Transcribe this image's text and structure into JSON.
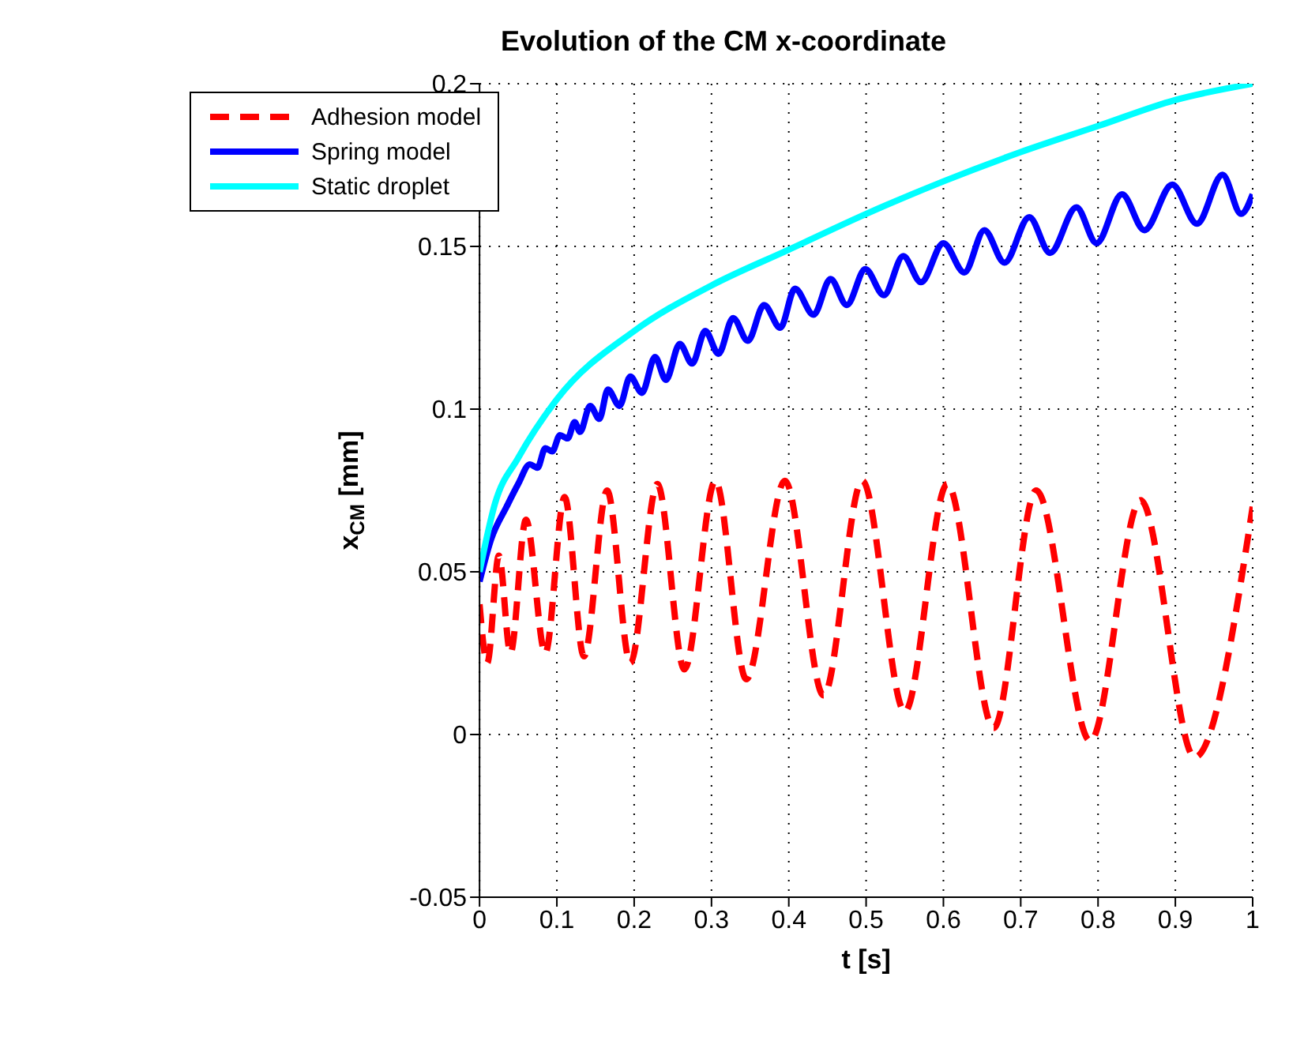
{
  "chart_data": {
    "type": "line",
    "title": "Evolution of the CM x-coordinate",
    "xlabel": "t [s]",
    "ylabel": "x$_{CM}$ [mm]",
    "xlim": [
      0,
      1
    ],
    "xticks": [
      0,
      0.1,
      0.2,
      0.3,
      0.4,
      0.5,
      0.6,
      0.7,
      0.8,
      0.9,
      1
    ],
    "ylim": [
      -0.05,
      0.2
    ],
    "yticks": [
      -0.05,
      0,
      0.05,
      0.1,
      0.15,
      0.2
    ],
    "grid": true,
    "legend": "top left",
    "marker": "none",
    "series": [
      {
        "name": "Adhesion model",
        "color": "#ff0000",
        "line_style": "dashed",
        "x": [
          0,
          0.01,
          0.025,
          0.04,
          0.06,
          0.085,
          0.11,
          0.135,
          0.165,
          0.195,
          0.23,
          0.265,
          0.305,
          0.345,
          0.395,
          0.445,
          0.495,
          0.55,
          0.605,
          0.665,
          0.72,
          0.79,
          0.855,
          0.925,
          1.0
        ],
        "values": [
          0.04,
          0.022,
          0.055,
          0.025,
          0.066,
          0.025,
          0.073,
          0.024,
          0.075,
          0.022,
          0.077,
          0.02,
          0.078,
          0.017,
          0.078,
          0.012,
          0.078,
          0.007,
          0.077,
          0.002,
          0.075,
          -0.002,
          0.072,
          -0.007,
          0.07
        ]
      },
      {
        "name": "Spring model",
        "color": "#0000ff",
        "line_style": "solid",
        "x": [
          0,
          0.015,
          0.035,
          0.05,
          0.065,
          0.075,
          0.085,
          0.094,
          0.104,
          0.114,
          0.123,
          0.13,
          0.143,
          0.155,
          0.166,
          0.181,
          0.195,
          0.21,
          0.227,
          0.241,
          0.259,
          0.275,
          0.292,
          0.309,
          0.328,
          0.347,
          0.368,
          0.389,
          0.408,
          0.432,
          0.454,
          0.475,
          0.499,
          0.523,
          0.548,
          0.571,
          0.6,
          0.627,
          0.653,
          0.679,
          0.711,
          0.738,
          0.772,
          0.798,
          0.831,
          0.86,
          0.896,
          0.928,
          0.961,
          0.985,
          1.0
        ],
        "values": [
          0.047,
          0.06,
          0.07,
          0.077,
          0.083,
          0.082,
          0.088,
          0.087,
          0.092,
          0.091,
          0.096,
          0.093,
          0.101,
          0.097,
          0.106,
          0.101,
          0.11,
          0.105,
          0.116,
          0.109,
          0.12,
          0.114,
          0.124,
          0.117,
          0.128,
          0.121,
          0.132,
          0.125,
          0.137,
          0.129,
          0.14,
          0.132,
          0.143,
          0.135,
          0.147,
          0.139,
          0.151,
          0.142,
          0.155,
          0.145,
          0.159,
          0.148,
          0.162,
          0.151,
          0.166,
          0.155,
          0.169,
          0.157,
          0.172,
          0.16,
          0.166
        ]
      },
      {
        "name": "Static droplet",
        "color": "#00ffff",
        "line_style": "solid",
        "x": [
          0,
          0.02,
          0.05,
          0.1,
          0.2,
          0.3,
          0.4,
          0.5,
          0.6,
          0.7,
          0.8,
          0.9,
          1.0
        ],
        "values": [
          0.05,
          0.071,
          0.085,
          0.103,
          0.124,
          0.138,
          0.149,
          0.16,
          0.17,
          0.179,
          0.187,
          0.195,
          0.2
        ]
      }
    ]
  }
}
